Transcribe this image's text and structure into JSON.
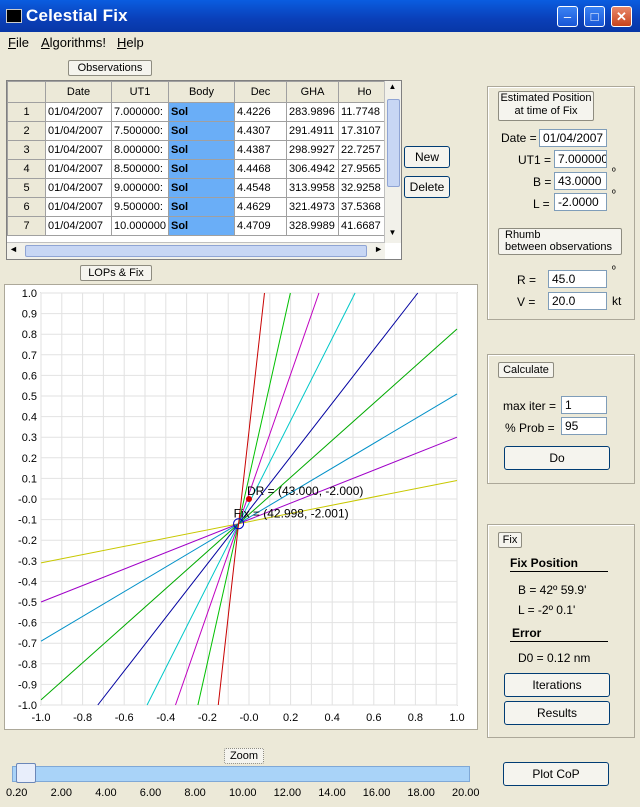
{
  "window": {
    "title": "Celestial Fix"
  },
  "menu": [
    "File",
    "Algorithms!",
    "Help"
  ],
  "observations": {
    "title": "Observations",
    "columns": [
      "Date",
      "UT1",
      "Body",
      "Dec",
      "GHA",
      "Ho"
    ],
    "rows": [
      {
        "n": "1",
        "date": "01/04/2007",
        "ut1": "7.000000:",
        "body": "Sol",
        "dec": "4.4226",
        "gha": "283.9896",
        "ho": "11.7748"
      },
      {
        "n": "2",
        "date": "01/04/2007",
        "ut1": "7.500000:",
        "body": "Sol",
        "dec": "4.4307",
        "gha": "291.4911",
        "ho": "17.3107"
      },
      {
        "n": "3",
        "date": "01/04/2007",
        "ut1": "8.000000:",
        "body": "Sol",
        "dec": "4.4387",
        "gha": "298.9927",
        "ho": "22.7257"
      },
      {
        "n": "4",
        "date": "01/04/2007",
        "ut1": "8.500000:",
        "body": "Sol",
        "dec": "4.4468",
        "gha": "306.4942",
        "ho": "27.9565"
      },
      {
        "n": "5",
        "date": "01/04/2007",
        "ut1": "9.000000:",
        "body": "Sol",
        "dec": "4.4548",
        "gha": "313.9958",
        "ho": "32.9258"
      },
      {
        "n": "6",
        "date": "01/04/2007",
        "ut1": "9.500000:",
        "body": "Sol",
        "dec": "4.4629",
        "gha": "321.4973",
        "ho": "37.5368"
      },
      {
        "n": "7",
        "date": "01/04/2007",
        "ut1": "10.000000",
        "body": "Sol",
        "dec": "4.4709",
        "gha": "328.9989",
        "ho": "41.6687"
      }
    ],
    "new_label": "New",
    "delete_label": "Delete"
  },
  "estimated": {
    "title": "Estimated Position\nat time of Fix",
    "date_label": "Date =",
    "date": "01/04/2007",
    "ut1_label": "UT1 =",
    "ut1": "7.000000:",
    "b_label": "B =",
    "b": "43.0000",
    "b_unit": "º",
    "l_label": "L =",
    "l": "-2.0000",
    "l_unit": "º",
    "rhumb_title": "Rhumb\nbetween observations",
    "r_label": "R =",
    "r": "45.0",
    "r_unit": "º",
    "v_label": "V =",
    "v": "20.0",
    "v_unit": "kt"
  },
  "calculate": {
    "title": "Calculate",
    "maxiter_label": "max iter =",
    "maxiter": "1",
    "prob_label": "% Prob =",
    "prob": "95",
    "do_label": "Do"
  },
  "fix": {
    "title": "Fix",
    "position_title": "Fix Position",
    "b_text": "B =  42º 59.9'",
    "l_text": "L =  -2º  0.1'",
    "error_title": "Error",
    "d0_text": "D0 = 0.12 nm",
    "iterations_label": "Iterations",
    "results_label": "Results"
  },
  "plot": {
    "button_label": "LOPs & Fix",
    "dr_label": "DR = (43.000, -2.000)",
    "fix_label": "Fix = (42.998, -2.001)",
    "xticks": [
      "-1.0",
      "-0.8",
      "-0.6",
      "-0.4",
      "-0.2",
      "-0.0",
      "0.2",
      "0.4",
      "0.6",
      "0.8",
      "1.0"
    ],
    "yticks": [
      "1.0",
      "0.9",
      "0.8",
      "0.7",
      "0.6",
      "0.5",
      "0.4",
      "0.3",
      "0.2",
      "0.1",
      "-0.0",
      "-0.1",
      "-0.2",
      "-0.3",
      "-0.4",
      "-0.5",
      "-0.6",
      "-0.7",
      "-0.8",
      "-0.9",
      "-1.0"
    ],
    "line_colors": [
      "#c8c800",
      "#a000c8",
      "#0090c8",
      "#00aa00",
      "#0000a0",
      "#00c8c8",
      "#c000c0",
      "#00c000",
      "#c80000"
    ],
    "line_slopes": [
      0.2,
      0.4,
      0.6,
      0.9,
      1.3,
      2.0,
      2.9,
      4.5,
      9.0
    ],
    "dr": [
      0.0,
      0.0
    ],
    "fix": [
      -0.05,
      -0.12
    ]
  },
  "zoom": {
    "label": "Zoom",
    "ticks": [
      "0.20",
      "2.00",
      "4.00",
      "6.00",
      "8.00",
      "10.00",
      "12.00",
      "14.00",
      "16.00",
      "18.00",
      "20.00"
    ],
    "value": 0.2,
    "min": 0.2,
    "max": 20.0
  },
  "plotcop": {
    "label": "Plot CoP"
  }
}
